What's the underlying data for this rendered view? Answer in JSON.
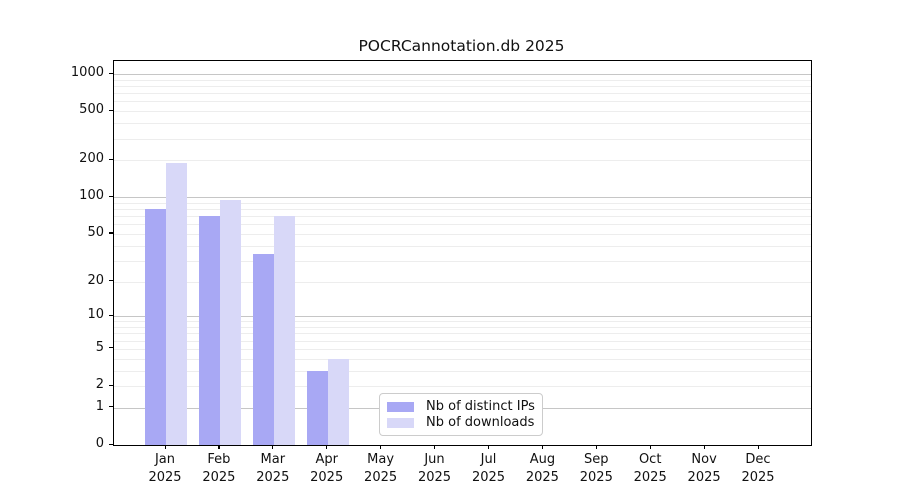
{
  "chart_data": {
    "type": "bar",
    "title": "POCRCannotation.db 2025",
    "xlabel": "",
    "ylabel": "",
    "yscale": "log1p",
    "ylim": [
      0,
      1000
    ],
    "yticks": [
      "0",
      "1",
      "2",
      "5",
      "10",
      "20",
      "50",
      "100",
      "200",
      "500",
      "1000"
    ],
    "ytick_values": [
      0,
      1,
      2,
      5,
      10,
      20,
      50,
      100,
      200,
      500,
      1000
    ],
    "grid": "horizontal-major-and-minor",
    "categories": [
      "Jan",
      "Feb",
      "Mar",
      "Apr",
      "May",
      "Jun",
      "Jul",
      "Aug",
      "Sep",
      "Oct",
      "Nov",
      "Dec"
    ],
    "x_tick_year": "2025",
    "series": [
      {
        "name": "Nb of distinct IPs",
        "color": "#a8a8f4",
        "values": [
          80,
          70,
          34,
          3,
          0,
          0,
          0,
          0,
          0,
          0,
          0,
          0
        ]
      },
      {
        "name": "Nb of downloads",
        "color": "#d8d8f8",
        "values": [
          190,
          95,
          70,
          4,
          0,
          0,
          0,
          0,
          0,
          0,
          0,
          0
        ]
      }
    ],
    "legend_position": "lower-center",
    "colors": {
      "major_grid": "#c6c6c6",
      "minor_grid": "#ededed",
      "axis_frame": "#000000",
      "legend_border": "#cccccc",
      "background": "#ffffff"
    }
  }
}
